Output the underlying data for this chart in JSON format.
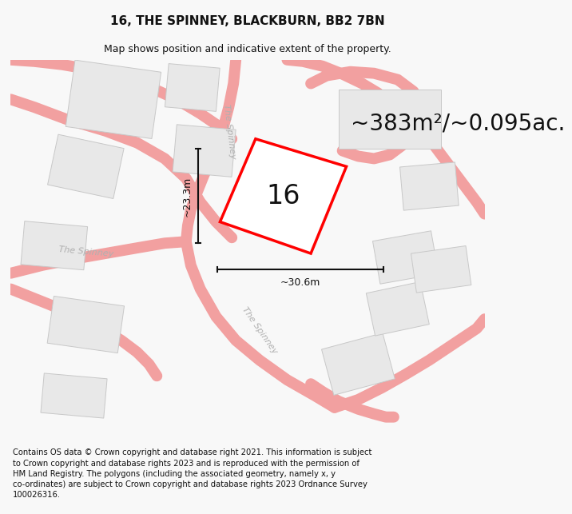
{
  "title": "16, THE SPINNEY, BLACKBURN, BB2 7BN",
  "subtitle": "Map shows position and indicative extent of the property.",
  "area_text": "~383m²/~0.095ac.",
  "dim_width": "~30.6m",
  "dim_height": "~23.3m",
  "label": "16",
  "footer": "Contains OS data © Crown copyright and database right 2021. This information is subject to Crown copyright and database rights 2023 and is reproduced with the permission of HM Land Registry. The polygons (including the associated geometry, namely x, y co-ordinates) are subject to Crown copyright and database rights 2023 Ordnance Survey 100026316.",
  "bg_color": "#f8f8f8",
  "map_bg": "#ffffff",
  "road_color": "#f2a0a0",
  "building_fill": "#e8e8e8",
  "building_edge": "#c8c8c8",
  "plot_fill": "#ffffff",
  "plot_edge": "#ff0000",
  "dim_color": "#111111",
  "street_label_color": "#b0b0b0",
  "title_fontsize": 11,
  "subtitle_fontsize": 9,
  "area_fontsize": 20,
  "label_fontsize": 24,
  "footer_fontsize": 7.2
}
